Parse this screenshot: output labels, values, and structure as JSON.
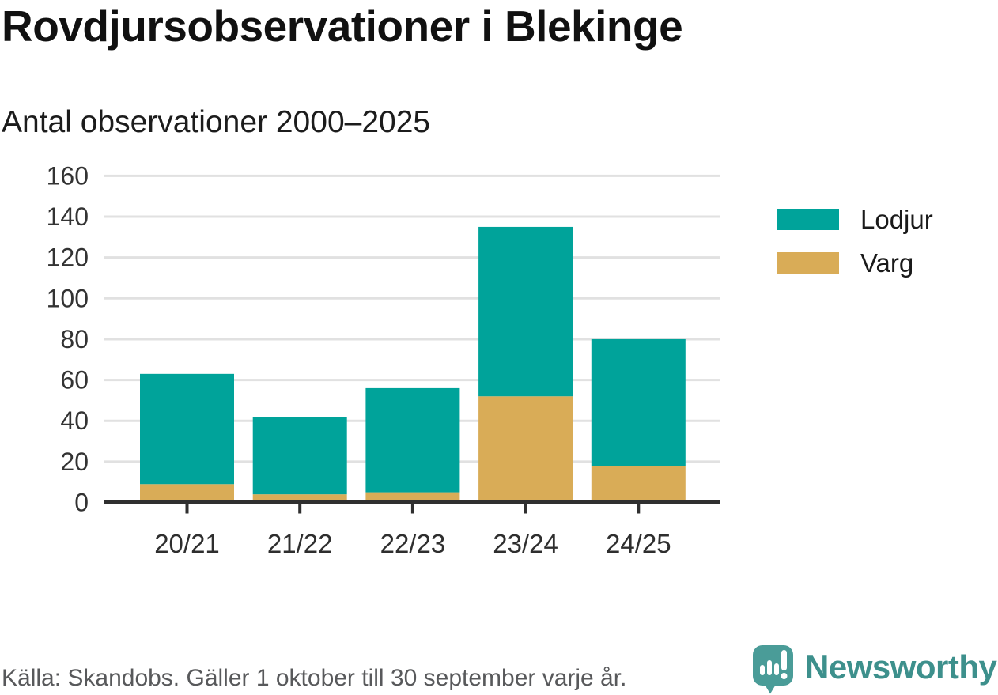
{
  "title": "Rovdjursobservationer i Blekinge",
  "subtitle": "Antal observationer 2000–2025",
  "footer": {
    "source": "Källa: Skandobs. Gäller 1 oktober till 30 september varje år."
  },
  "branding": {
    "logo_text": "Newsworthy",
    "logo_icon": "newsworthy-chart-bubble-icon",
    "wordmark_color": "#3d908c",
    "icon_color": "#4a9c98",
    "icon_glyph_color": "#ffffff"
  },
  "colors": {
    "lodjur": "#00a39a",
    "varg": "#d9ac57",
    "grid": "#e1e1e1",
    "axis": "#2f2f2f",
    "tick_label": "#333333",
    "footer_text": "#58595b"
  },
  "legend": {
    "items": [
      {
        "label": "Lodjur",
        "color": "#00a39a"
      },
      {
        "label": "Varg",
        "color": "#d9ac57"
      }
    ]
  },
  "chart_data": {
    "type": "bar",
    "stacked": true,
    "title": "Rovdjursobservationer i Blekinge",
    "subtitle": "Antal observationer 2000–2025",
    "categories": [
      "20/21",
      "21/22",
      "22/23",
      "23/24",
      "24/25"
    ],
    "series": [
      {
        "name": "Varg",
        "color": "#d9ac57",
        "values": [
          9,
          4,
          5,
          52,
          18
        ]
      },
      {
        "name": "Lodjur",
        "color": "#00a39a",
        "values": [
          54,
          38,
          51,
          83,
          62
        ]
      }
    ],
    "totals": [
      63,
      42,
      56,
      135,
      80
    ],
    "xlabel": "",
    "ylabel": "",
    "ylim": [
      0,
      160
    ],
    "yticks": [
      0,
      20,
      40,
      60,
      80,
      100,
      120,
      140,
      160
    ],
    "grid": true,
    "legend_position": "right",
    "legend_order": [
      "Lodjur",
      "Varg"
    ]
  }
}
